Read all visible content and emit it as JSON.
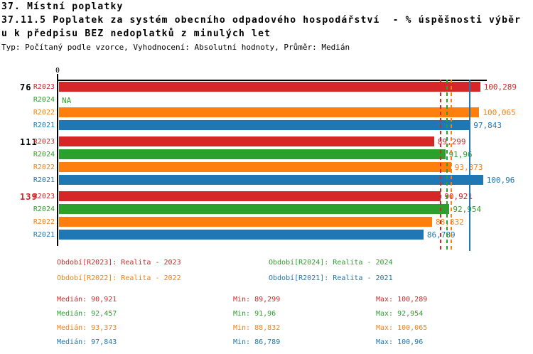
{
  "title": {
    "line1": "37. Místní poplatky",
    "line2": "37.11.5 Poplatek za systém obecního odpadového hospodářství  - % úspěšnosti výběr",
    "line3": "u k předpisu BEZ nedoplatků z minulých let",
    "meta": "Typ: Počítaný podle vzorce, Vyhodnocení: Absolutní hodnoty, Průměr: Medián"
  },
  "colors": {
    "R2023": "#d62728",
    "R2024": "#2ca02c",
    "R2022": "#ff7f0e",
    "R2021": "#1f77b4",
    "axis": "#000000",
    "group_label_highlight": "#d62728"
  },
  "chart_data": {
    "type": "bar",
    "orientation": "horizontal",
    "axis_zero_label": "0",
    "xlim": [
      0,
      102
    ],
    "na_label": "NA",
    "groups": [
      {
        "label": "76",
        "label_color": "#000000",
        "bars": [
          {
            "series": "R2023",
            "value": 100.289,
            "label": "100,289"
          },
          {
            "series": "R2024",
            "value": null,
            "label": "NA"
          },
          {
            "series": "R2022",
            "value": 100.065,
            "label": "100,065"
          },
          {
            "series": "R2021",
            "value": 97.843,
            "label": "97,843"
          }
        ]
      },
      {
        "label": "111",
        "label_color": "#000000",
        "bars": [
          {
            "series": "R2023",
            "value": 89.299,
            "label": "89,299"
          },
          {
            "series": "R2024",
            "value": 91.96,
            "label": "91,96"
          },
          {
            "series": "R2022",
            "value": 93.373,
            "label": "93,373"
          },
          {
            "series": "R2021",
            "value": 100.96,
            "label": "100,96"
          }
        ]
      },
      {
        "label": "139",
        "label_color": "#d62728",
        "bars": [
          {
            "series": "R2023",
            "value": 90.921,
            "label": "90,921"
          },
          {
            "series": "R2024",
            "value": 92.954,
            "label": "92,954"
          },
          {
            "series": "R2022",
            "value": 88.832,
            "label": "88,832"
          },
          {
            "series": "R2021",
            "value": 86.789,
            "label": "86,789"
          }
        ]
      }
    ],
    "median_lines": [
      {
        "series": "R2023",
        "value": 90.921,
        "style": "dashed"
      },
      {
        "series": "R2024",
        "value": 92.457,
        "style": "dashed"
      },
      {
        "series": "R2022",
        "value": 93.373,
        "style": "dashed"
      },
      {
        "series": "R2021",
        "value": 97.843,
        "style": "solid"
      }
    ]
  },
  "legend": [
    {
      "series": "R2023",
      "text": "Období[R2023]: Realita - 2023"
    },
    {
      "series": "R2024",
      "text": "Období[R2024]: Realita - 2024"
    },
    {
      "series": "R2022",
      "text": "Období[R2022]: Realita - 2022"
    },
    {
      "series": "R2021",
      "text": "Období[R2021]: Realita - 2021"
    }
  ],
  "stats": [
    {
      "series": "R2023",
      "median": "Medián: 90,921",
      "min": "Min: 89,299",
      "max": "Max: 100,289"
    },
    {
      "series": "R2024",
      "median": "Medián: 92,457",
      "min": "Min: 91,96",
      "max": "Max: 92,954"
    },
    {
      "series": "R2022",
      "median": "Medián: 93,373",
      "min": "Min: 88,832",
      "max": "Max: 100,065"
    },
    {
      "series": "R2021",
      "median": "Medián: 97,843",
      "min": "Min: 86,789",
      "max": "Max: 100,96"
    }
  ]
}
